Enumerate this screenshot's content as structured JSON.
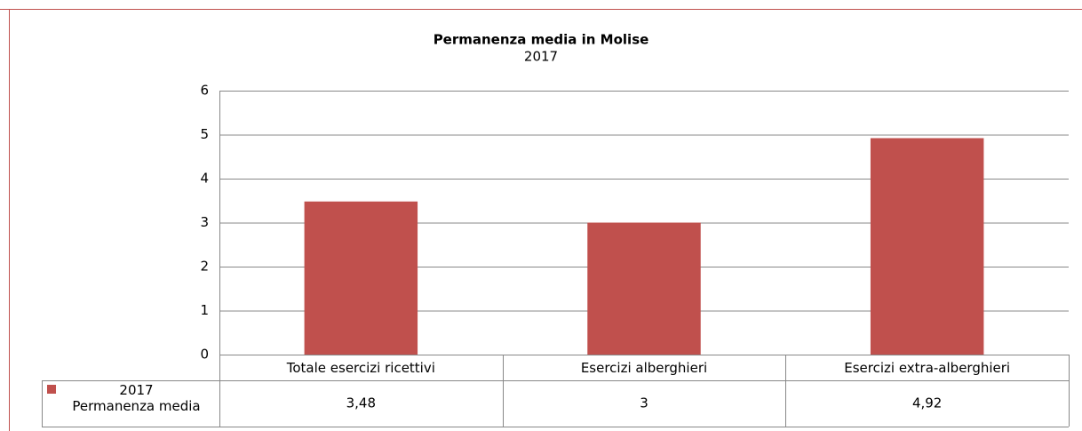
{
  "chart_data": {
    "type": "bar",
    "title": "Permanenza media in Molise",
    "subtitle": "2017",
    "categories": [
      "Totale esercizi ricettivi",
      "Esercizi alberghieri",
      "Esercizi extra-alberghieri"
    ],
    "series": [
      {
        "name": "2017\nPermanenza media",
        "color": "#c0504d",
        "values": [
          3.48,
          3,
          4.92
        ],
        "value_labels": [
          "3,48",
          "3",
          "4,92"
        ]
      }
    ],
    "ylim": [
      0,
      6
    ],
    "yticks": [
      0,
      1,
      2,
      3,
      4,
      5,
      6
    ],
    "grid": true
  }
}
